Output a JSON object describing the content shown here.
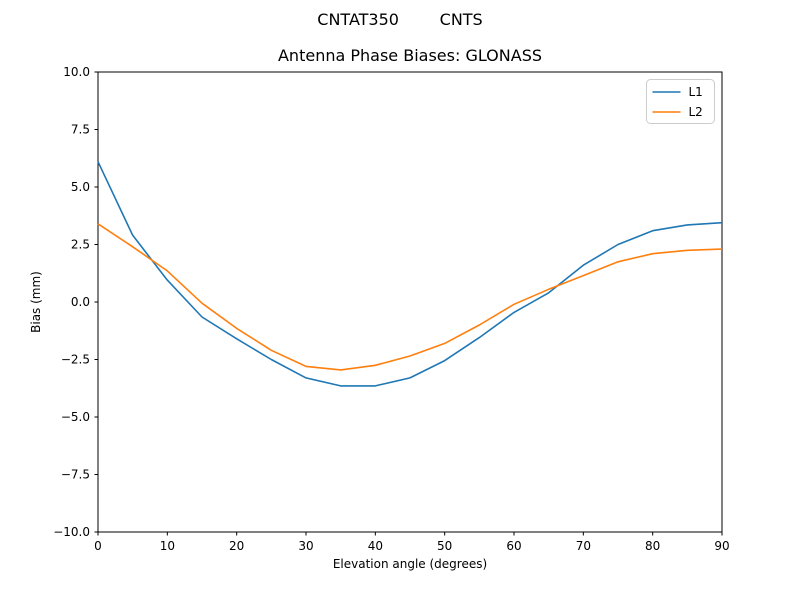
{
  "figure": {
    "suptitle": "CNTAT350        CNTS",
    "title": "Antenna Phase Biases: GLONASS",
    "xlabel": "Elevation angle (degrees)",
    "ylabel": "Bias (mm)"
  },
  "chart_data": {
    "type": "line",
    "suptitle": "CNTAT350        CNTS",
    "title": "Antenna Phase Biases: GLONASS",
    "xlabel": "Elevation angle (degrees)",
    "ylabel": "Bias (mm)",
    "xlim": [
      0,
      90
    ],
    "ylim": [
      -10,
      10
    ],
    "xticks": [
      0,
      10,
      20,
      30,
      40,
      50,
      60,
      70,
      80,
      90
    ],
    "yticks": [
      10.0,
      7.5,
      5.0,
      2.5,
      0.0,
      -2.5,
      -5.0,
      -7.5,
      -10.0
    ],
    "ytick_labels": [
      "10.0",
      "7.5",
      "5.0",
      "2.5",
      "0.0",
      "−2.5",
      "−5.0",
      "−7.5",
      "−10.0"
    ],
    "grid": false,
    "legend": {
      "position": "upper right",
      "entries": [
        "L1",
        "L2"
      ]
    },
    "x": [
      0,
      5,
      10,
      15,
      20,
      25,
      30,
      35,
      40,
      45,
      50,
      55,
      60,
      65,
      70,
      75,
      80,
      85,
      90
    ],
    "series": [
      {
        "name": "L1",
        "color": "#1f77b4",
        "values": [
          6.1,
          2.9,
          0.95,
          -0.65,
          -1.6,
          -2.5,
          -3.3,
          -3.65,
          -3.65,
          -3.3,
          -2.55,
          -1.55,
          -0.45,
          0.4,
          1.6,
          2.5,
          3.1,
          3.35,
          3.45
        ]
      },
      {
        "name": "L2",
        "color": "#ff7f0e",
        "values": [
          3.4,
          2.4,
          1.35,
          -0.05,
          -1.15,
          -2.1,
          -2.8,
          -2.95,
          -2.75,
          -2.35,
          -1.8,
          -1.0,
          -0.1,
          0.55,
          1.15,
          1.75,
          2.1,
          2.25,
          2.3
        ]
      }
    ]
  }
}
